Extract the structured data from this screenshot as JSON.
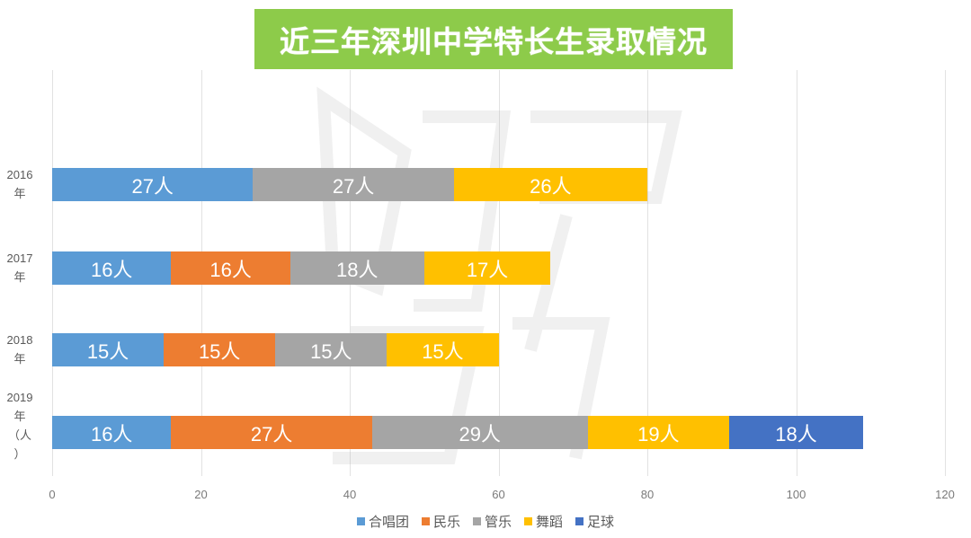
{
  "title": "近三年深圳中学特长生录取情况",
  "colors": {
    "title_bg": "#8dcb4a",
    "合唱团": "#5b9bd5",
    "民乐": "#ed7d31",
    "管乐": "#a5a5a5",
    "舞蹈": "#ffc000",
    "足球": "#4472c4"
  },
  "y_labels": [
    {
      "line1": "2016",
      "line2": "年",
      "line3": "",
      "line4": ""
    },
    {
      "line1": "2017",
      "line2": "年",
      "line3": "",
      "line4": ""
    },
    {
      "line1": "2018",
      "line2": "年",
      "line3": "",
      "line4": ""
    },
    {
      "line1": "2019",
      "line2": "年",
      "line3": "（人",
      "line4": "）"
    }
  ],
  "x_ticks": [
    "0",
    "20",
    "40",
    "60",
    "80",
    "100",
    "120"
  ],
  "legend": [
    "合唱团",
    "民乐",
    "管乐",
    "舞蹈",
    "足球"
  ],
  "bars": [
    {
      "year": "2016年",
      "segments": [
        {
          "series": "合唱团",
          "value": 27,
          "label": "27人"
        },
        {
          "series": "管乐",
          "value": 27,
          "label": "27人"
        },
        {
          "series": "舞蹈",
          "value": 26,
          "label": "26人"
        }
      ]
    },
    {
      "year": "2017年",
      "segments": [
        {
          "series": "合唱团",
          "value": 16,
          "label": "16人"
        },
        {
          "series": "民乐",
          "value": 16,
          "label": "16人"
        },
        {
          "series": "管乐",
          "value": 18,
          "label": "18人"
        },
        {
          "series": "舞蹈",
          "value": 17,
          "label": "17人"
        }
      ]
    },
    {
      "year": "2018年",
      "segments": [
        {
          "series": "合唱团",
          "value": 15,
          "label": "15人"
        },
        {
          "series": "民乐",
          "value": 15,
          "label": "15人"
        },
        {
          "series": "管乐",
          "value": 15,
          "label": "15人"
        },
        {
          "series": "舞蹈",
          "value": 15,
          "label": "15人"
        }
      ]
    },
    {
      "year": "2019年（人）",
      "segments": [
        {
          "series": "合唱团",
          "value": 16,
          "label": "16人"
        },
        {
          "series": "民乐",
          "value": 27,
          "label": "27人"
        },
        {
          "series": "管乐",
          "value": 29,
          "label": "29人"
        },
        {
          "series": "舞蹈",
          "value": 19,
          "label": "19人"
        },
        {
          "series": "足球",
          "value": 18,
          "label": "18人"
        }
      ]
    }
  ],
  "chart_data": {
    "type": "bar",
    "orientation": "horizontal",
    "stacked": true,
    "title": "近三年深圳中学特长生录取情况",
    "categories": [
      "2016年",
      "2017年",
      "2018年",
      "2019年（人）"
    ],
    "series": [
      {
        "name": "合唱团",
        "values": [
          27,
          16,
          15,
          16
        ]
      },
      {
        "name": "民乐",
        "values": [
          0,
          16,
          15,
          27
        ]
      },
      {
        "name": "管乐",
        "values": [
          27,
          18,
          15,
          29
        ]
      },
      {
        "name": "舞蹈",
        "values": [
          26,
          17,
          15,
          19
        ]
      },
      {
        "name": "足球",
        "values": [
          0,
          0,
          0,
          18
        ]
      }
    ],
    "data_labels": true,
    "data_label_suffix": "人",
    "xlabel": "",
    "ylabel": "",
    "xlim": [
      0,
      120
    ],
    "x_ticks": [
      0,
      20,
      40,
      60,
      80,
      100,
      120
    ],
    "grid": true,
    "legend_position": "bottom"
  }
}
